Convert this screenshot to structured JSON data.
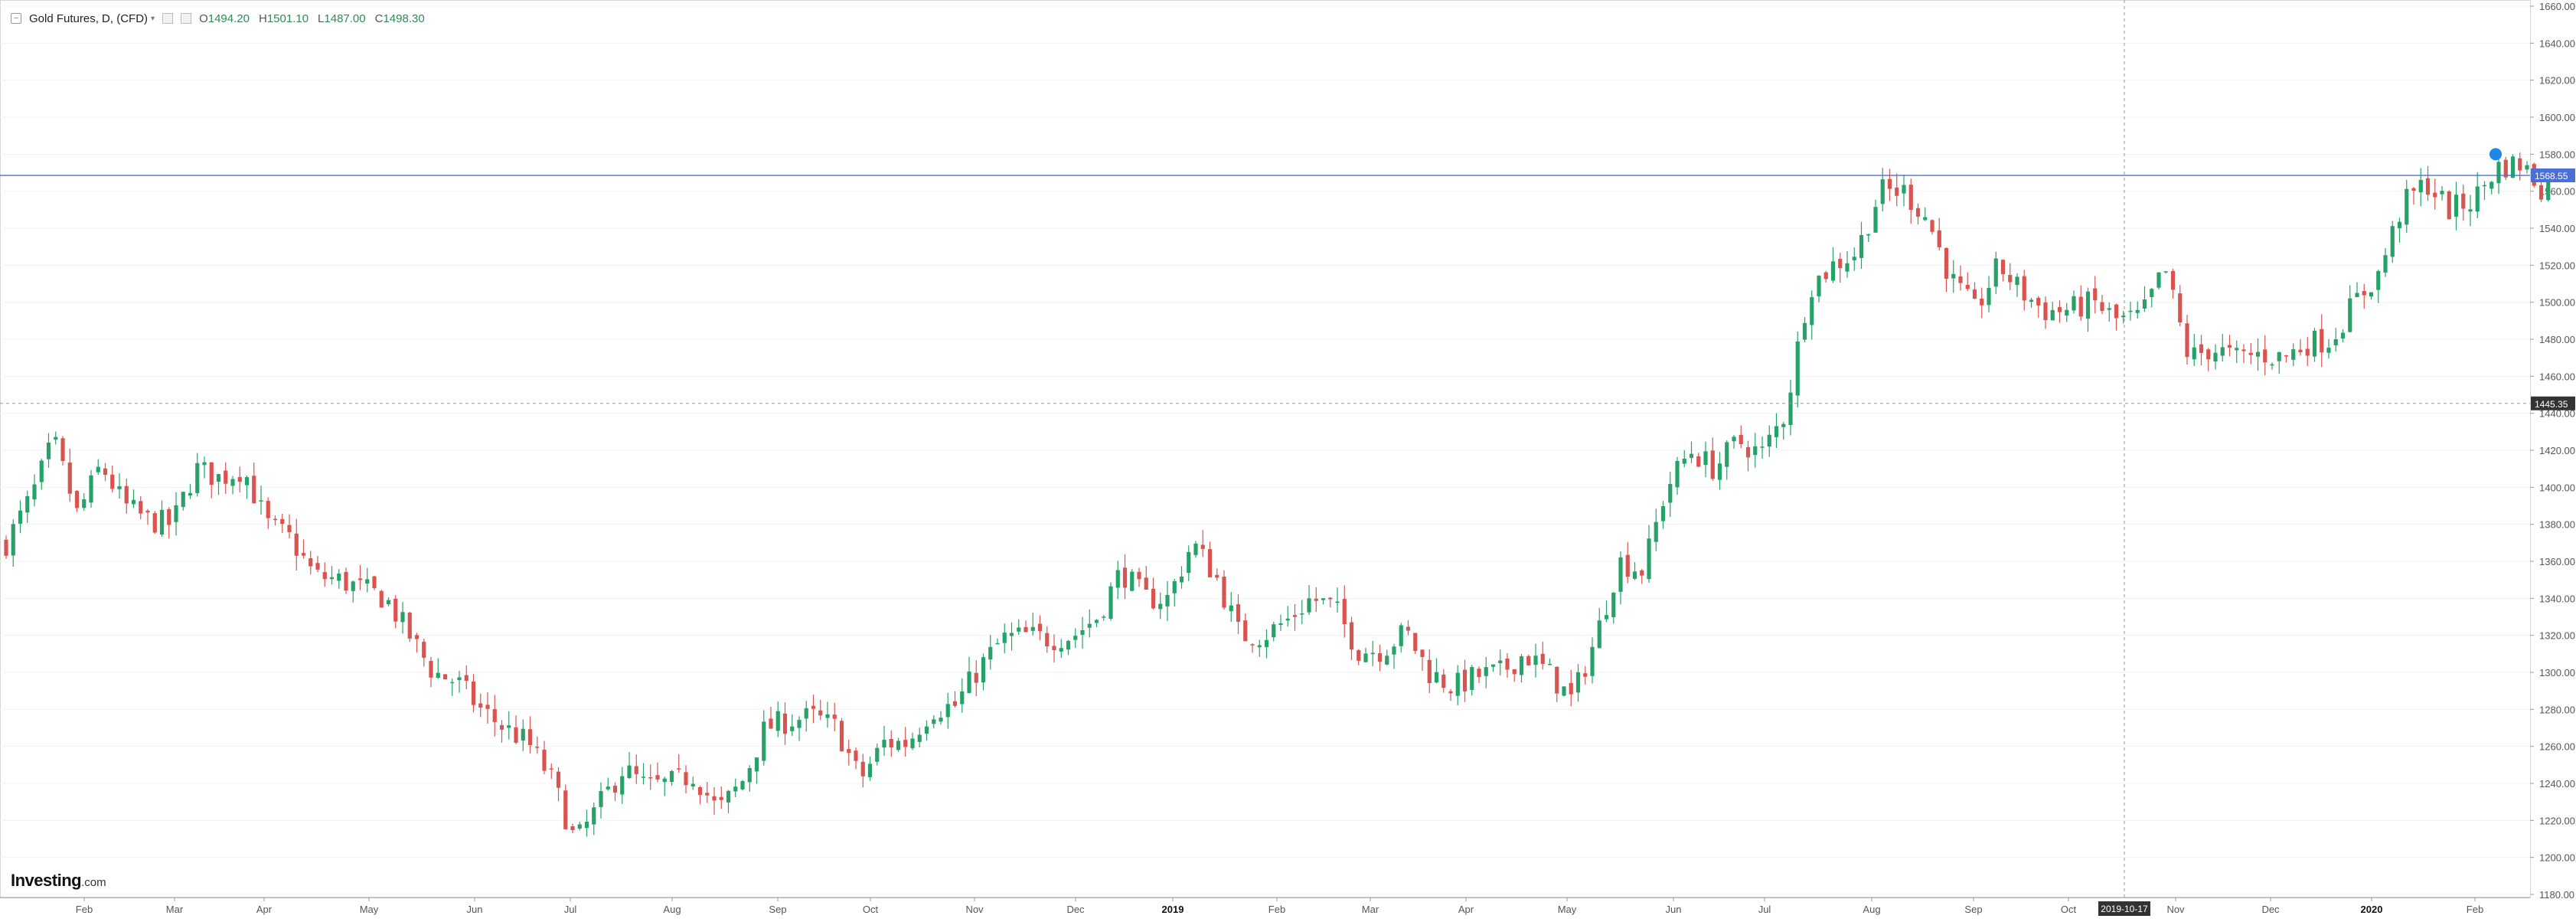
{
  "legend": {
    "instrument": "Gold Futures, D, (CFD)",
    "open_label": "O",
    "open": "1494.20",
    "high_label": "H",
    "high": "1501.10",
    "low_label": "L",
    "low": "1487.00",
    "close_label": "C",
    "close": "1498.30"
  },
  "branding": {
    "logo": "Investing",
    "logo_suffix": ".com"
  },
  "colors": {
    "up": "#26a269",
    "down": "#d9534f",
    "crosshair": "#999999",
    "price_line": "#4a6fd8",
    "grid": "#f3f3f3"
  },
  "crosshair": {
    "date_label": "2019-10-17",
    "price_label": "1445.35",
    "price": 1445.35
  },
  "price_line": {
    "label": "1568.55",
    "price": 1568.55
  },
  "chart_data": {
    "type": "candlestick",
    "title": "Gold Futures, D, (CFD)",
    "ylim": [
      1180,
      1660
    ],
    "yticks": [
      1180,
      1200,
      1220,
      1240,
      1260,
      1280,
      1300,
      1320,
      1340,
      1360,
      1380,
      1400,
      1420,
      1440,
      1460,
      1480,
      1500,
      1520,
      1540,
      1560,
      1580,
      1600,
      1620,
      1640,
      1660
    ],
    "x_months": [
      "Feb",
      "Mar",
      "Apr",
      "May",
      "Jun",
      "Jul",
      "Aug",
      "Sep",
      "Oct",
      "Nov",
      "Dec",
      "2019",
      "Feb",
      "Mar",
      "Apr",
      "May",
      "Jun",
      "Jul",
      "Aug",
      "Sep",
      "Oct",
      "Nov",
      "Dec",
      "2020",
      "Feb"
    ],
    "close_path": [
      [
        0,
        1370
      ],
      [
        14,
        1395
      ],
      [
        26,
        1425
      ],
      [
        39,
        1385
      ],
      [
        52,
        1412
      ],
      [
        65,
        1390
      ],
      [
        78,
        1382
      ],
      [
        91,
        1380
      ],
      [
        104,
        1410
      ],
      [
        117,
        1405
      ],
      [
        130,
        1410
      ],
      [
        143,
        1380
      ],
      [
        156,
        1372
      ],
      [
        169,
        1352
      ],
      [
        182,
        1350
      ],
      [
        195,
        1345
      ],
      [
        208,
        1340
      ],
      [
        221,
        1320
      ],
      [
        234,
        1300
      ],
      [
        247,
        1295
      ],
      [
        260,
        1280
      ],
      [
        273,
        1270
      ],
      [
        286,
        1262
      ],
      [
        299,
        1242
      ],
      [
        312,
        1208
      ],
      [
        325,
        1228
      ],
      [
        338,
        1248
      ],
      [
        351,
        1238
      ],
      [
        364,
        1240
      ],
      [
        377,
        1245
      ],
      [
        390,
        1225
      ],
      [
        403,
        1240
      ],
      [
        416,
        1270
      ],
      [
        429,
        1274
      ],
      [
        442,
        1276
      ],
      [
        455,
        1270
      ],
      [
        468,
        1242
      ],
      [
        481,
        1262
      ],
      [
        494,
        1262
      ],
      [
        507,
        1280
      ],
      [
        520,
        1282
      ],
      [
        533,
        1302
      ],
      [
        546,
        1318
      ],
      [
        559,
        1320
      ],
      [
        572,
        1318
      ],
      [
        585,
        1320
      ],
      [
        598,
        1330
      ],
      [
        611,
        1355
      ],
      [
        624,
        1340
      ],
      [
        637,
        1340
      ],
      [
        650,
        1370
      ],
      [
        663,
        1352
      ],
      [
        676,
        1320
      ],
      [
        689,
        1320
      ],
      [
        702,
        1328
      ],
      [
        715,
        1340
      ],
      [
        728,
        1335
      ],
      [
        741,
        1312
      ],
      [
        754,
        1312
      ],
      [
        767,
        1322
      ],
      [
        780,
        1300
      ],
      [
        793,
        1292
      ],
      [
        806,
        1298
      ],
      [
        819,
        1300
      ],
      [
        832,
        1310
      ],
      [
        845,
        1300
      ],
      [
        858,
        1285
      ],
      [
        871,
        1318
      ],
      [
        884,
        1360
      ],
      [
        897,
        1355
      ],
      [
        910,
        1400
      ],
      [
        923,
        1420
      ],
      [
        936,
        1410
      ],
      [
        949,
        1425
      ],
      [
        962,
        1418
      ],
      [
        975,
        1440
      ],
      [
        988,
        1508
      ],
      [
        1001,
        1520
      ],
      [
        1014,
        1527
      ],
      [
        1027,
        1560
      ],
      [
        1040,
        1560
      ],
      [
        1053,
        1545
      ],
      [
        1066,
        1512
      ],
      [
        1079,
        1495
      ],
      [
        1092,
        1520
      ],
      [
        1105,
        1505
      ],
      [
        1118,
        1495
      ],
      [
        1131,
        1496
      ],
      [
        1144,
        1500
      ],
      [
        1157,
        1490
      ],
      [
        1170,
        1492
      ],
      [
        1183,
        1518
      ],
      [
        1196,
        1470
      ],
      [
        1209,
        1475
      ],
      [
        1222,
        1470
      ],
      [
        1235,
        1472
      ],
      [
        1248,
        1470
      ],
      [
        1261,
        1478
      ],
      [
        1274,
        1480
      ],
      [
        1287,
        1500
      ],
      [
        1300,
        1515
      ],
      [
        1313,
        1552
      ],
      [
        1326,
        1565
      ],
      [
        1339,
        1550
      ],
      [
        1352,
        1555
      ],
      [
        1365,
        1573
      ],
      [
        1378,
        1575
      ],
      [
        1391,
        1560
      ],
      [
        1397,
        1570
      ]
    ],
    "series": [
      {
        "name": "Gold Futures"
      }
    ]
  }
}
